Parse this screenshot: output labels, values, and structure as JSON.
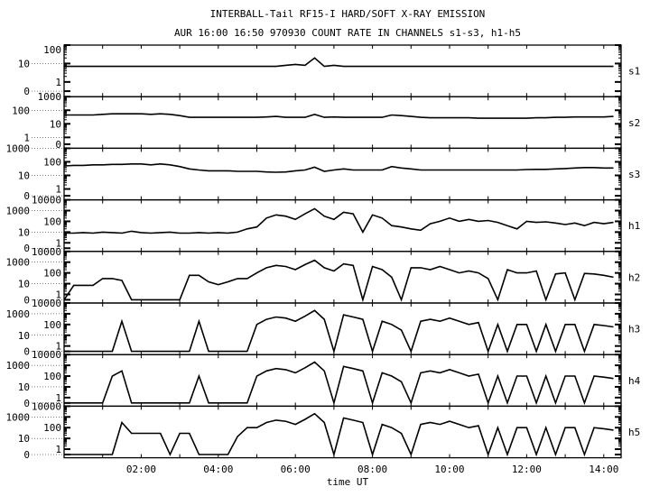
{
  "chart_data": {
    "type": "line",
    "title": "INTERBALL-Tail RF15-I HARD/SOFT X-RAY EMISSION",
    "subtitle": "AUR 16:00 16:50 970930  COUNT RATE IN CHANNELS s1-s3, h1-h5",
    "xlabel": "time UT",
    "xlim_hours": [
      0,
      14.45
    ],
    "x_tick_labels": [
      "02:00",
      "04:00",
      "06:00",
      "08:00",
      "10:00",
      "12:00",
      "14:00"
    ],
    "x_tick_hours": [
      2,
      4,
      6,
      8,
      10,
      12,
      14
    ],
    "x_sample_step_hours": 0.25,
    "y_scale": "log with zero level at bottom",
    "grid": false,
    "colors": {
      "line": "#000000",
      "background": "#ffffff"
    },
    "panels": [
      {
        "name": "s1",
        "yticks": [
          "100",
          "10",
          "1",
          "0"
        ],
        "ymax": 100,
        "values": [
          7,
          7,
          7,
          7,
          7,
          7,
          7,
          7,
          7,
          7,
          7,
          7,
          7,
          7,
          7,
          7,
          7,
          7,
          7,
          7,
          7,
          7,
          7,
          8,
          9,
          8,
          20,
          7,
          8,
          7,
          7,
          7,
          7,
          7,
          7,
          7,
          7,
          7,
          7,
          7,
          7,
          7,
          7,
          7,
          7,
          7,
          7,
          7,
          7,
          7,
          7,
          7,
          7,
          7,
          7,
          7,
          7,
          7
        ]
      },
      {
        "name": "s2",
        "yticks": [
          "1000",
          "100",
          "10",
          "1",
          "0"
        ],
        "ymax": 1000,
        "values": [
          45,
          45,
          45,
          45,
          50,
          55,
          55,
          55,
          55,
          50,
          55,
          50,
          40,
          30,
          30,
          30,
          30,
          30,
          30,
          30,
          30,
          32,
          35,
          30,
          30,
          30,
          50,
          30,
          32,
          30,
          30,
          30,
          30,
          30,
          45,
          40,
          35,
          30,
          28,
          28,
          28,
          28,
          28,
          26,
          26,
          26,
          26,
          26,
          26,
          28,
          28,
          30,
          30,
          32,
          32,
          32,
          32,
          35
        ]
      },
      {
        "name": "s3",
        "yticks": [
          "1000",
          "100",
          "10",
          "1",
          "0"
        ],
        "ymax": 1000,
        "values": [
          50,
          55,
          55,
          60,
          60,
          65,
          65,
          70,
          70,
          60,
          70,
          60,
          45,
          30,
          25,
          22,
          22,
          22,
          20,
          20,
          20,
          18,
          17,
          18,
          22,
          25,
          40,
          20,
          25,
          30,
          25,
          25,
          25,
          25,
          45,
          35,
          30,
          25,
          25,
          25,
          25,
          25,
          25,
          25,
          25,
          25,
          25,
          25,
          27,
          28,
          28,
          30,
          32,
          35,
          38,
          38,
          35,
          35
        ]
      },
      {
        "name": "h1",
        "yticks": [
          "10000",
          "1000",
          "100",
          "10",
          "1",
          "0"
        ],
        "ymax": 10000,
        "values": [
          8,
          8,
          9,
          8,
          10,
          9,
          8,
          12,
          9,
          8,
          9,
          10,
          8,
          8,
          9,
          8,
          9,
          8,
          10,
          20,
          30,
          200,
          400,
          300,
          150,
          500,
          1500,
          300,
          150,
          700,
          500,
          10,
          400,
          200,
          40,
          30,
          20,
          15,
          60,
          100,
          200,
          100,
          150,
          100,
          120,
          80,
          40,
          20,
          100,
          80,
          90,
          70,
          50,
          70,
          40,
          80,
          60,
          80
        ]
      },
      {
        "name": "h2",
        "yticks": [
          "10000",
          "1000",
          "100",
          "10",
          "1",
          "0"
        ],
        "ymax": 10000,
        "values": [
          0,
          7,
          7,
          7,
          30,
          30,
          20,
          0,
          0,
          0,
          0,
          0,
          0,
          60,
          60,
          15,
          8,
          15,
          30,
          30,
          100,
          300,
          500,
          400,
          200,
          600,
          1500,
          300,
          150,
          700,
          500,
          0,
          400,
          200,
          40,
          0,
          300,
          300,
          200,
          400,
          200,
          100,
          150,
          100,
          30,
          0,
          200,
          100,
          100,
          150,
          0,
          80,
          100,
          0,
          90,
          80,
          60,
          40
        ]
      },
      {
        "name": "h3",
        "yticks": [
          "10000",
          "1000",
          "100",
          "10",
          "1",
          "0"
        ],
        "ymax": 10000,
        "values": [
          0,
          0,
          0,
          0,
          0,
          0,
          200,
          0,
          0,
          0,
          0,
          0,
          0,
          0,
          200,
          0,
          0,
          0,
          0,
          0,
          100,
          300,
          500,
          400,
          200,
          600,
          2000,
          300,
          0,
          800,
          500,
          300,
          0,
          200,
          100,
          30,
          0,
          200,
          300,
          200,
          400,
          200,
          100,
          150,
          0,
          100,
          0,
          100,
          100,
          0,
          100,
          0,
          100,
          100,
          0,
          100,
          80,
          60
        ]
      },
      {
        "name": "h4",
        "yticks": [
          "10000",
          "1000",
          "100",
          "10",
          "1",
          "0"
        ],
        "ymax": 10000,
        "values": [
          0,
          0,
          0,
          0,
          0,
          100,
          300,
          0,
          0,
          0,
          0,
          0,
          0,
          0,
          100,
          0,
          0,
          0,
          0,
          0,
          100,
          300,
          500,
          400,
          200,
          600,
          2000,
          300,
          0,
          800,
          500,
          300,
          0,
          200,
          100,
          30,
          0,
          200,
          300,
          200,
          400,
          200,
          100,
          150,
          0,
          100,
          0,
          100,
          100,
          0,
          100,
          0,
          100,
          100,
          0,
          100,
          80,
          60
        ]
      },
      {
        "name": "h5",
        "yticks": [
          "10000",
          "1000",
          "100",
          "10",
          "1",
          "0"
        ],
        "ymax": 10000,
        "values": [
          0,
          0,
          0,
          0,
          0,
          0,
          300,
          30,
          30,
          30,
          30,
          0,
          30,
          30,
          0,
          0,
          0,
          0,
          15,
          100,
          100,
          300,
          500,
          400,
          200,
          600,
          2000,
          300,
          0,
          800,
          500,
          300,
          0,
          200,
          100,
          30,
          0,
          200,
          300,
          200,
          400,
          200,
          100,
          150,
          0,
          100,
          0,
          100,
          100,
          0,
          100,
          0,
          100,
          100,
          0,
          100,
          80,
          60
        ]
      }
    ]
  }
}
